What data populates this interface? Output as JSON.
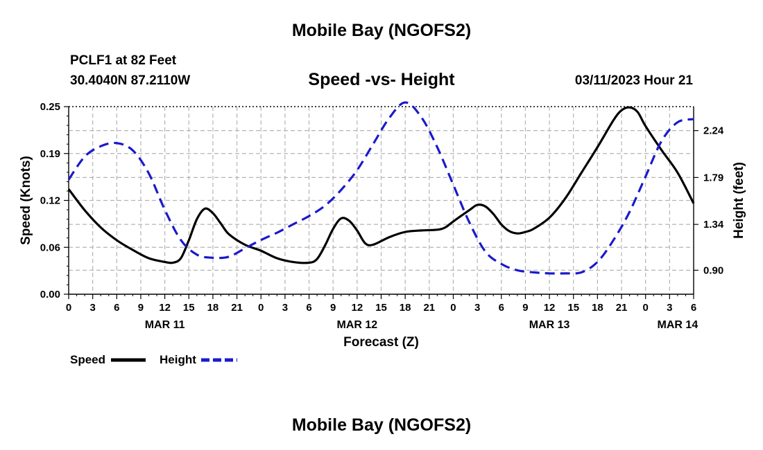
{
  "header": {
    "title": "Mobile Bay (NGOFS2)",
    "station": "PCLF1 at 82 Feet",
    "coords": "30.4040N  87.2110W",
    "subtitle": "Speed -vs- Height",
    "timestamp": "03/11/2023 Hour 21"
  },
  "footer": {
    "title": "Mobile Bay (NGOFS2)"
  },
  "chart_data": {
    "type": "line",
    "xlabel": "Forecast (Z)",
    "ylabel": "Speed (Knots)",
    "y2label": "Height (feet)",
    "x_range_hours": [
      0,
      78
    ],
    "x_ticks": [
      {
        "h": 0,
        "label": "0"
      },
      {
        "h": 3,
        "label": "3"
      },
      {
        "h": 6,
        "label": "6"
      },
      {
        "h": 9,
        "label": "9"
      },
      {
        "h": 12,
        "label": "12"
      },
      {
        "h": 15,
        "label": "15"
      },
      {
        "h": 18,
        "label": "18"
      },
      {
        "h": 21,
        "label": "21"
      },
      {
        "h": 24,
        "label": "0"
      },
      {
        "h": 27,
        "label": "3"
      },
      {
        "h": 30,
        "label": "6"
      },
      {
        "h": 33,
        "label": "9"
      },
      {
        "h": 36,
        "label": "12"
      },
      {
        "h": 39,
        "label": "15"
      },
      {
        "h": 42,
        "label": "18"
      },
      {
        "h": 45,
        "label": "21"
      },
      {
        "h": 48,
        "label": "0"
      },
      {
        "h": 51,
        "label": "3"
      },
      {
        "h": 54,
        "label": "6"
      },
      {
        "h": 57,
        "label": "9"
      },
      {
        "h": 60,
        "label": "12"
      },
      {
        "h": 63,
        "label": "15"
      },
      {
        "h": 66,
        "label": "18"
      },
      {
        "h": 69,
        "label": "21"
      },
      {
        "h": 72,
        "label": "0"
      },
      {
        "h": 75,
        "label": "3"
      },
      {
        "h": 78,
        "label": "6"
      }
    ],
    "date_labels": [
      {
        "h": 12,
        "label": "MAR 11"
      },
      {
        "h": 36,
        "label": "MAR 12"
      },
      {
        "h": 60,
        "label": "MAR 13"
      },
      {
        "h": 76,
        "label": "MAR 14"
      }
    ],
    "ylim": [
      0,
      0.25
    ],
    "y_ticks": [
      {
        "v": 0.0,
        "label": "0.00"
      },
      {
        "v": 0.0625,
        "label": "0.06"
      },
      {
        "v": 0.125,
        "label": "0.12"
      },
      {
        "v": 0.1875,
        "label": "0.19"
      },
      {
        "v": 0.25,
        "label": "0.25"
      }
    ],
    "y2lim": [
      0.67,
      2.47
    ],
    "y2_ticks": [
      {
        "v": 0.9,
        "label": "0.90"
      },
      {
        "v": 1.34,
        "label": "1.34"
      },
      {
        "v": 1.79,
        "label": "1.79"
      },
      {
        "v": 2.24,
        "label": "2.24"
      }
    ],
    "legend": [
      {
        "name": "Speed",
        "color": "#000000",
        "dash": "solid"
      },
      {
        "name": "Height",
        "color": "#1a1acc",
        "dash": "dashed"
      }
    ],
    "series": [
      {
        "name": "Speed",
        "axis": "left",
        "color": "#000000",
        "unit": "knots",
        "x": [
          0,
          2,
          4,
          6,
          8,
          10,
          12,
          13,
          14,
          15,
          16,
          17,
          18,
          19,
          20,
          22,
          24,
          26,
          28,
          30,
          31,
          32,
          33,
          34,
          35,
          36,
          37,
          38,
          40,
          42,
          44,
          46,
          47,
          48,
          50,
          51,
          52,
          53,
          54,
          55,
          56,
          57,
          58,
          60,
          62,
          64,
          66,
          68,
          69,
          70,
          71,
          72,
          74,
          76,
          78
        ],
        "values": [
          0.14,
          0.112,
          0.089,
          0.072,
          0.059,
          0.048,
          0.043,
          0.042,
          0.048,
          0.072,
          0.1,
          0.114,
          0.108,
          0.094,
          0.08,
          0.066,
          0.058,
          0.048,
          0.043,
          0.042,
          0.047,
          0.065,
          0.087,
          0.101,
          0.098,
          0.085,
          0.068,
          0.066,
          0.076,
          0.083,
          0.085,
          0.086,
          0.089,
          0.097,
          0.112,
          0.119,
          0.117,
          0.107,
          0.093,
          0.084,
          0.081,
          0.083,
          0.087,
          0.102,
          0.128,
          0.162,
          0.196,
          0.232,
          0.245,
          0.249,
          0.243,
          0.224,
          0.192,
          0.162,
          0.121
        ]
      },
      {
        "name": "Height",
        "axis": "right",
        "color": "#1a1acc",
        "unit": "feet",
        "x": [
          0,
          2,
          4,
          6,
          8,
          10,
          12,
          14,
          16,
          18,
          20,
          22,
          24,
          26,
          28,
          30,
          32,
          34,
          36,
          38,
          40,
          42,
          44,
          46,
          48,
          50,
          52,
          54,
          56,
          58,
          60,
          62,
          64,
          66,
          68,
          70,
          72,
          74,
          76,
          78
        ],
        "values": [
          1.77,
          1.99,
          2.09,
          2.12,
          2.05,
          1.83,
          1.48,
          1.19,
          1.05,
          1.02,
          1.03,
          1.11,
          1.19,
          1.26,
          1.34,
          1.42,
          1.52,
          1.67,
          1.86,
          2.11,
          2.36,
          2.51,
          2.37,
          2.08,
          1.72,
          1.36,
          1.08,
          0.96,
          0.9,
          0.88,
          0.87,
          0.87,
          0.88,
          0.98,
          1.19,
          1.46,
          1.8,
          2.14,
          2.32,
          2.35
        ]
      }
    ]
  }
}
